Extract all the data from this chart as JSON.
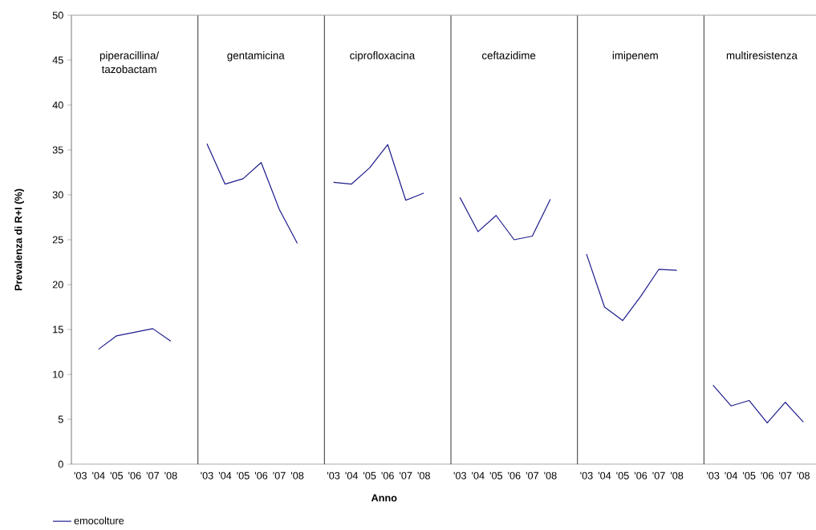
{
  "chart_data": {
    "type": "line",
    "xlabel": "Anno",
    "ylabel": "Prevalenza di R+I (%)",
    "annotations": [
      "piperacillina/ tazobactam",
      "gentamicina",
      "ciprofloxacina",
      "ceftazidime",
      "imipenem",
      "multiresistenza"
    ],
    "categories": [
      "'03",
      "'04",
      "'05",
      "'06",
      "'07",
      "'08",
      "'03",
      "'04",
      "'05",
      "'06",
      "'07",
      "'08",
      "'03",
      "'04",
      "'05",
      "'06",
      "'07",
      "'08",
      "'03",
      "'04",
      "'05",
      "'06",
      "'07",
      "'08",
      "'03",
      "'04",
      "'05",
      "'06",
      "'07",
      "'08",
      "'03",
      "'04",
      "'05",
      "'06",
      "'07",
      "'08"
    ],
    "series": [
      {
        "name": "emocolture",
        "color": "#1c1c8c",
        "values": [
          null,
          12.8,
          14.3,
          14.7,
          15.1,
          13.7,
          35.7,
          31.2,
          31.8,
          33.6,
          28.4,
          24.6,
          31.4,
          31.2,
          33.0,
          35.6,
          29.4,
          30.2,
          29.7,
          25.9,
          27.7,
          25.0,
          25.4,
          29.5,
          23.4,
          17.5,
          16.0,
          18.7,
          21.7,
          21.6,
          8.8,
          6.5,
          7.1,
          4.6,
          6.9,
          4.7
        ]
      }
    ],
    "ylim": [
      0,
      50
    ],
    "yticks": [
      0,
      5,
      10,
      15,
      20,
      25,
      30,
      35,
      40,
      45,
      50
    ],
    "grid": false,
    "legend": "bottom left",
    "marker": "none",
    "line_style": "solid"
  }
}
